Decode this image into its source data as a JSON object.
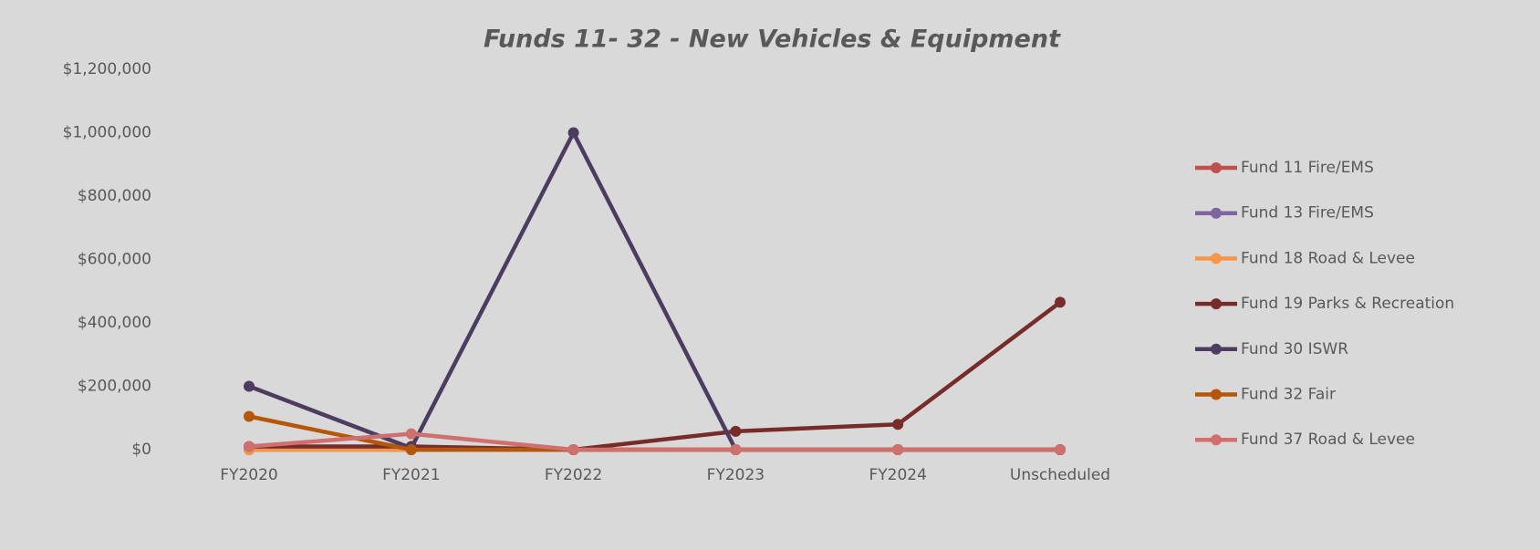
{
  "chart_data": {
    "type": "line",
    "title": "Funds 11- 32 - New Vehicles & Equipment",
    "categories": [
      "FY2020",
      "FY2021",
      "FY2022",
      "FY2023",
      "FY2024",
      "Unscheduled"
    ],
    "series": [
      {
        "name": "Fund 11 Fire/EMS",
        "color": "#c0504d",
        "values": [
          5000,
          0,
          0,
          0,
          0,
          0
        ]
      },
      {
        "name": "Fund 13 Fire/EMS",
        "color": "#8064a2",
        "values": [
          0,
          0,
          0,
          0,
          0,
          0
        ]
      },
      {
        "name": "Fund 18 Road & Levee",
        "color": "#f79646",
        "values": [
          0,
          0,
          0,
          0,
          0,
          0
        ]
      },
      {
        "name": "Fund 19 Parks & Recreation",
        "color": "#772c2a",
        "values": [
          10000,
          10000,
          0,
          58000,
          80000,
          465000
        ]
      },
      {
        "name": "Fund 30 ISWR",
        "color": "#4d3b62",
        "values": [
          200000,
          5000,
          1000000,
          0,
          0,
          0
        ]
      },
      {
        "name": "Fund 32  Fair",
        "color": "#b65708",
        "values": [
          105000,
          0,
          0,
          0,
          0,
          0
        ]
      },
      {
        "name": "Fund 37 Road & Levee",
        "color": "#d0706e",
        "values": [
          10000,
          50000,
          0,
          0,
          0,
          0
        ]
      }
    ],
    "ylim": [
      0,
      1200000
    ],
    "yticks": [
      {
        "value": 0,
        "label": "$0"
      },
      {
        "value": 200000,
        "label": "$200,000"
      },
      {
        "value": 400000,
        "label": "$400,000"
      },
      {
        "value": 600000,
        "label": "$600,000"
      },
      {
        "value": 800000,
        "label": "$800,000"
      },
      {
        "value": 1000000,
        "label": "$1,000,000"
      },
      {
        "value": 1200000,
        "label": "$1,200,000"
      }
    ],
    "grid": false,
    "legend": "right"
  }
}
